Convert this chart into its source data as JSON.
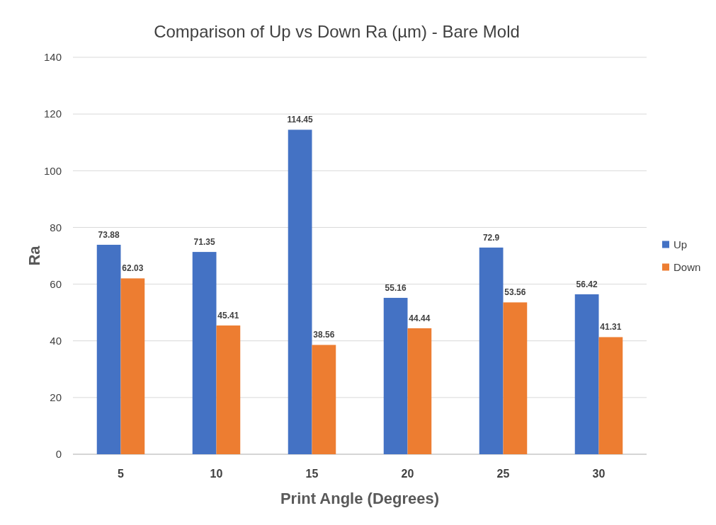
{
  "chart_data": {
    "type": "bar",
    "title": "Comparison of Up vs Down Ra (µm) - Bare Mold",
    "xlabel": "Print Angle (Degrees)",
    "ylabel": "Ra",
    "categories": [
      "5",
      "10",
      "15",
      "20",
      "25",
      "30"
    ],
    "series": [
      {
        "name": "Up",
        "color": "#4472c4",
        "values": [
          73.88,
          71.35,
          114.45,
          55.16,
          72.9,
          56.42
        ]
      },
      {
        "name": "Down",
        "color": "#ed7d31",
        "values": [
          62.03,
          45.41,
          38.56,
          44.44,
          53.56,
          41.31
        ]
      }
    ],
    "ylim": [
      0,
      140
    ],
    "yticks": [
      0,
      20,
      40,
      60,
      80,
      100,
      120,
      140
    ],
    "grid": "y",
    "legend": "right",
    "data_labels": true
  }
}
